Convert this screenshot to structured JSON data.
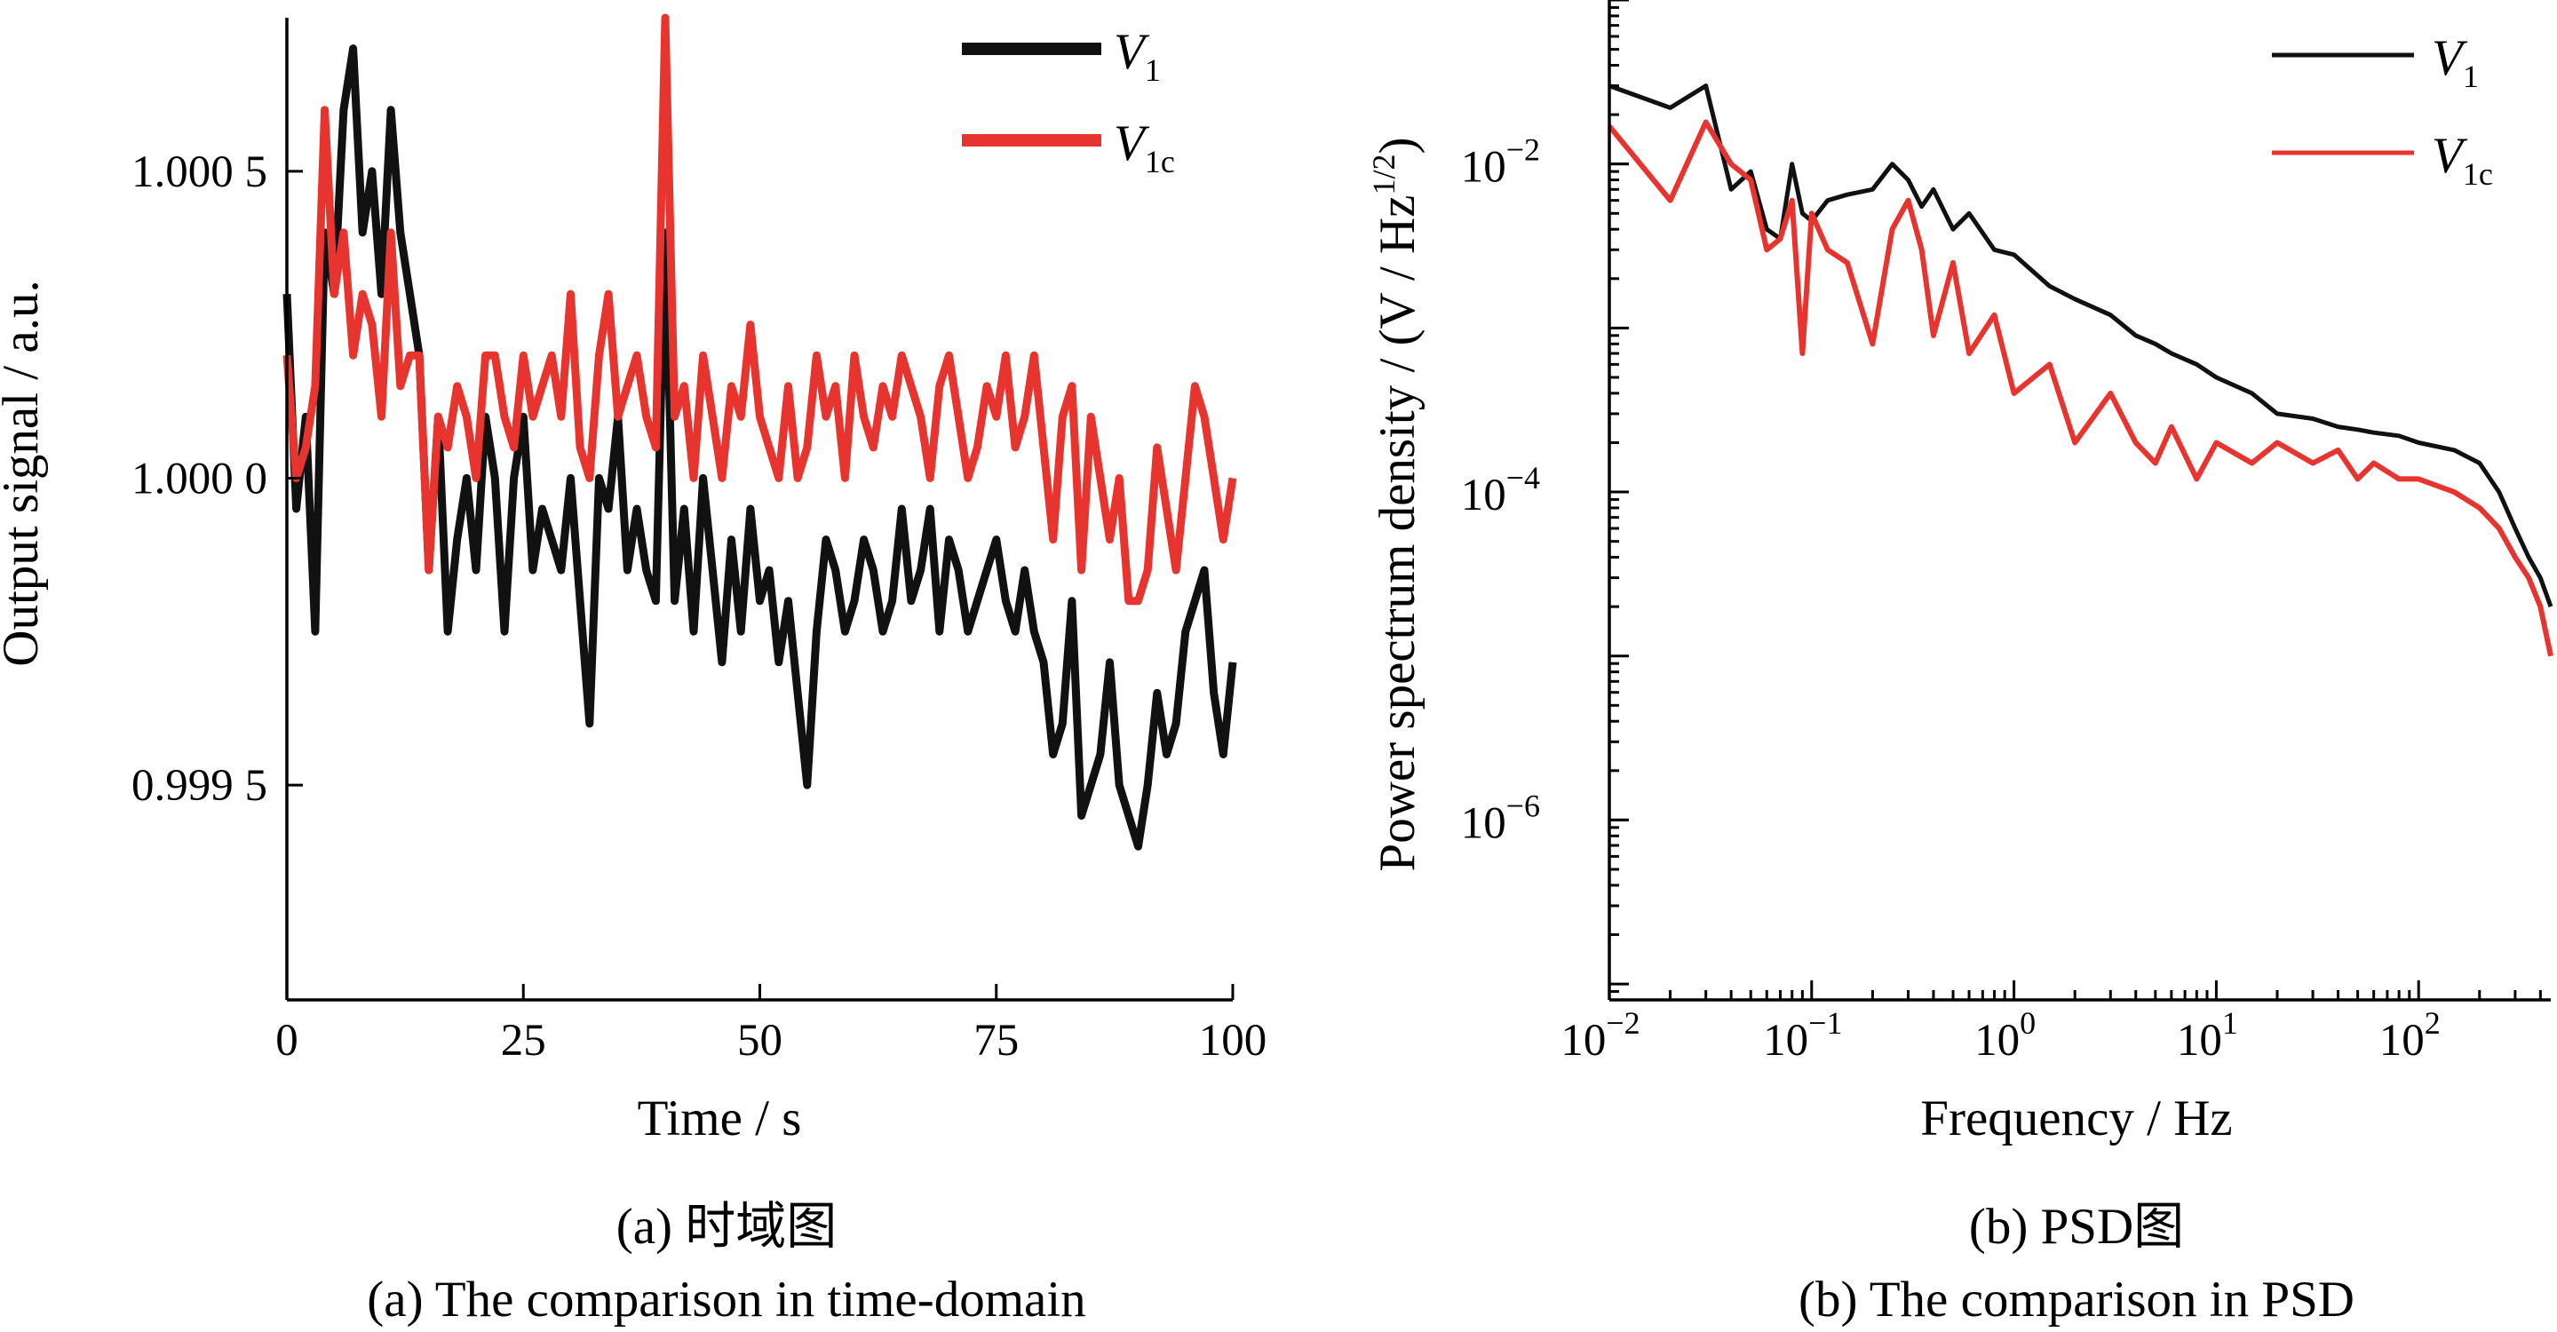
{
  "colors": {
    "v1": "#111111",
    "v1c": "#e8342e"
  },
  "chart_data": [
    {
      "type": "line",
      "panel": "a",
      "xlabel": "Time / s",
      "ylabel": "Output signal / a.u.",
      "xlim": [
        0,
        100
      ],
      "ylim": [
        0.99915,
        1.00075
      ],
      "x_ticks": [
        0,
        25,
        50,
        75,
        100
      ],
      "x_tick_labels": [
        "0",
        "25",
        "50",
        "75",
        "100"
      ],
      "y_ticks": [
        0.9995,
        1.0,
        1.0005
      ],
      "y_tick_labels": [
        "0.999 5",
        "1.000 0",
        "1.000 5"
      ],
      "legend_position": "top-right",
      "caption_cn": "(a) 时域图",
      "caption_en": "(a) The comparison in time-domain",
      "series": [
        {
          "name": "V",
          "name_sub": "1",
          "color": "#111111",
          "x": [
            0,
            1,
            2,
            3,
            4,
            5,
            6,
            7,
            8,
            9,
            10,
            11,
            12,
            13,
            14,
            15,
            16,
            17,
            18,
            19,
            20,
            21,
            22,
            23,
            24,
            25,
            26,
            27,
            28,
            29,
            30,
            31,
            32,
            33,
            34,
            35,
            36,
            37,
            38,
            39,
            40,
            41,
            42,
            43,
            44,
            45,
            46,
            47,
            48,
            49,
            50,
            51,
            52,
            53,
            54,
            55,
            56,
            57,
            58,
            59,
            60,
            61,
            62,
            63,
            64,
            65,
            66,
            67,
            68,
            69,
            70,
            71,
            72,
            73,
            74,
            75,
            76,
            77,
            78,
            79,
            80,
            81,
            82,
            83,
            84,
            85,
            86,
            87,
            88,
            89,
            90,
            91,
            92,
            93,
            94,
            95,
            96,
            97,
            98,
            99,
            100
          ],
          "values": [
            1.0003,
            0.99995,
            1.0001,
            0.99975,
            1.0004,
            1.0003,
            1.0006,
            1.0007,
            1.0004,
            1.0005,
            1.0003,
            1.0006,
            1.0004,
            1.0003,
            1.0002,
            0.99985,
            1.0001,
            0.99975,
            0.9999,
            1.0,
            0.99985,
            1.0001,
            1.0,
            0.99975,
            1.0,
            1.0001,
            0.99985,
            0.99995,
            0.9999,
            0.99985,
            1.0,
            0.9998,
            0.9996,
            1.0,
            0.99995,
            1.0001,
            0.99985,
            0.99995,
            0.99985,
            0.9998,
            1.0004,
            0.9998,
            0.99995,
            0.99975,
            1.0,
            0.99985,
            0.9997,
            0.9999,
            0.99975,
            0.99995,
            0.9998,
            0.99985,
            0.9997,
            0.9998,
            0.99965,
            0.9995,
            0.99975,
            0.9999,
            0.99985,
            0.99975,
            0.9998,
            0.9999,
            0.99985,
            0.99975,
            0.9998,
            0.99995,
            0.9998,
            0.99985,
            0.99995,
            0.99975,
            0.9999,
            0.99985,
            0.99975,
            0.9998,
            0.99985,
            0.9999,
            0.9998,
            0.99975,
            0.99985,
            0.99975,
            0.9997,
            0.99955,
            0.9996,
            0.9998,
            0.99945,
            0.9995,
            0.99955,
            0.9997,
            0.9995,
            0.99945,
            0.9994,
            0.9995,
            0.99965,
            0.99955,
            0.9996,
            0.99975,
            0.9998,
            0.99985,
            0.99965,
            0.99955,
            0.9997
          ]
        },
        {
          "name": "V",
          "name_sub": "1c",
          "color": "#e8342e",
          "x": [
            0,
            1,
            2,
            3,
            4,
            5,
            6,
            7,
            8,
            9,
            10,
            11,
            12,
            13,
            14,
            15,
            16,
            17,
            18,
            19,
            20,
            21,
            22,
            23,
            24,
            25,
            26,
            27,
            28,
            29,
            30,
            31,
            32,
            33,
            34,
            35,
            36,
            37,
            38,
            39,
            40,
            41,
            42,
            43,
            44,
            45,
            46,
            47,
            48,
            49,
            50,
            51,
            52,
            53,
            54,
            55,
            56,
            57,
            58,
            59,
            60,
            61,
            62,
            63,
            64,
            65,
            66,
            67,
            68,
            69,
            70,
            71,
            72,
            73,
            74,
            75,
            76,
            77,
            78,
            79,
            80,
            81,
            82,
            83,
            84,
            85,
            86,
            87,
            88,
            89,
            90,
            91,
            92,
            93,
            94,
            95,
            96,
            97,
            98,
            99,
            100
          ],
          "values": [
            1.0002,
            1.0,
            1.00005,
            1.00015,
            1.0006,
            1.0003,
            1.0004,
            1.0002,
            1.0003,
            1.00025,
            1.0001,
            1.0004,
            1.00015,
            1.0002,
            1.0002,
            0.99985,
            1.0001,
            1.00005,
            1.00015,
            1.0001,
            1.0,
            1.0002,
            1.0002,
            1.0001,
            1.00005,
            1.0002,
            1.0001,
            1.00015,
            1.0002,
            1.0001,
            1.0003,
            1.00005,
            1.0,
            1.0002,
            1.0003,
            1.0001,
            1.00015,
            1.0002,
            1.0001,
            1.00005,
            1.00075,
            1.0001,
            1.00015,
            1.0,
            1.0002,
            1.0001,
            1.0,
            1.00015,
            1.0001,
            1.00025,
            1.0001,
            1.00005,
            1.0,
            1.00015,
            1.0,
            1.00005,
            1.0002,
            1.0001,
            1.00015,
            1.0,
            1.0002,
            1.0001,
            1.00005,
            1.00015,
            1.0001,
            1.0002,
            1.00015,
            1.0001,
            1.0,
            1.00015,
            1.0002,
            1.0001,
            1.0,
            1.00005,
            1.00015,
            1.0001,
            1.0002,
            1.00005,
            1.0001,
            1.0002,
            1.00005,
            0.9999,
            1.0001,
            1.00015,
            0.99985,
            1.0001,
            1.0,
            0.9999,
            1.0,
            0.9998,
            0.9998,
            0.99985,
            1.00005,
            0.99995,
            0.99985,
            1.0,
            1.00015,
            1.0001,
            1.0,
            0.9999,
            1.0
          ]
        }
      ]
    },
    {
      "type": "line",
      "panel": "b",
      "scale": "log-log",
      "xlabel": "Frequency / Hz",
      "ylabel": "Power spectrum density / (V / Hz",
      "ylabel_sup": "1/2",
      "ylabel_end": ")",
      "xlim": [
        0.01,
        450
      ],
      "ylim": [
        8e-08,
        0.1
      ],
      "x_tick_exponents": [
        -2,
        -1,
        0,
        1,
        2
      ],
      "x_tick_base": "10",
      "y_tick_exponents": [
        -6,
        -4,
        -2
      ],
      "y_tick_base": "10",
      "legend_position": "top-right",
      "caption_cn": "(b) PSD图",
      "caption_en": "(b) The comparison in PSD",
      "series": [
        {
          "name": "V",
          "name_sub": "1",
          "color": "#111111",
          "x": [
            0.01,
            0.02,
            0.03,
            0.04,
            0.05,
            0.06,
            0.07,
            0.08,
            0.09,
            0.1,
            0.12,
            0.15,
            0.2,
            0.25,
            0.3,
            0.35,
            0.4,
            0.5,
            0.6,
            0.8,
            1,
            1.5,
            2,
            3,
            4,
            5,
            6,
            8,
            10,
            15,
            20,
            30,
            40,
            50,
            60,
            80,
            100,
            150,
            200,
            250,
            300,
            350,
            400,
            450
          ],
          "values": [
            0.03,
            0.022,
            0.03,
            0.007,
            0.009,
            0.004,
            0.0035,
            0.01,
            0.005,
            0.0045,
            0.006,
            0.0065,
            0.007,
            0.01,
            0.008,
            0.0055,
            0.007,
            0.004,
            0.005,
            0.003,
            0.0028,
            0.0018,
            0.0015,
            0.0012,
            0.0009,
            0.0008,
            0.0007,
            0.0006,
            0.0005,
            0.0004,
            0.0003,
            0.00028,
            0.00025,
            0.00024,
            0.00023,
            0.00022,
            0.0002,
            0.00018,
            0.00015,
            0.0001,
            6e-05,
            4e-05,
            3e-05,
            2e-05
          ]
        },
        {
          "name": "V",
          "name_sub": "1c",
          "color": "#e8342e",
          "x": [
            0.01,
            0.02,
            0.03,
            0.04,
            0.05,
            0.06,
            0.07,
            0.08,
            0.09,
            0.1,
            0.12,
            0.15,
            0.2,
            0.25,
            0.3,
            0.35,
            0.4,
            0.5,
            0.6,
            0.8,
            1,
            1.5,
            2,
            3,
            4,
            5,
            6,
            8,
            10,
            15,
            20,
            30,
            40,
            50,
            60,
            80,
            100,
            150,
            200,
            250,
            300,
            350,
            400,
            450
          ],
          "values": [
            0.017,
            0.006,
            0.018,
            0.01,
            0.008,
            0.003,
            0.0035,
            0.006,
            0.0007,
            0.005,
            0.003,
            0.0025,
            0.0008,
            0.004,
            0.006,
            0.003,
            0.0009,
            0.0025,
            0.0007,
            0.0012,
            0.0004,
            0.0006,
            0.0002,
            0.0004,
            0.0002,
            0.00015,
            0.00025,
            0.00012,
            0.0002,
            0.00015,
            0.0002,
            0.00015,
            0.00018,
            0.00012,
            0.00015,
            0.00012,
            0.00012,
            0.0001,
            8e-05,
            6e-05,
            4e-05,
            3e-05,
            2e-05,
            1e-05
          ]
        }
      ]
    }
  ]
}
